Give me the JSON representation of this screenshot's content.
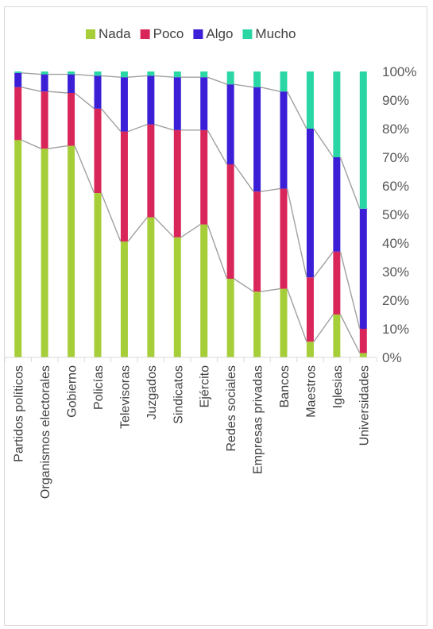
{
  "chart_data": {
    "type": "bar",
    "stacked": "percent",
    "series_lines": true,
    "categories": [
      "Partidos políticos",
      "Organismos electorales",
      "Gobierno",
      "Policías",
      "Televisoras",
      "Juzgados",
      "Sindicatos",
      "Ejército",
      "Redes sociales",
      "Empresas privadas",
      "Bancos",
      "Maestros",
      "Iglesias",
      "Universidades"
    ],
    "series": [
      {
        "name": "Nada",
        "color": "#a6ce39",
        "values": [
          76,
          73,
          74,
          57.5,
          40.5,
          49,
          42,
          46.5,
          27.5,
          23,
          24,
          5.5,
          15,
          1.5
        ]
      },
      {
        "name": "Poco",
        "color": "#d9265a",
        "values": [
          18.5,
          20,
          18.5,
          29.5,
          38.5,
          32.5,
          37.5,
          33,
          40,
          35,
          35,
          22.5,
          22,
          8.5
        ]
      },
      {
        "name": "Algo",
        "color": "#3a1fd6",
        "values": [
          5,
          6,
          6.5,
          11.5,
          19,
          17,
          18.5,
          18.5,
          28,
          36.5,
          34,
          52,
          33,
          42
        ]
      },
      {
        "name": "Mucho",
        "color": "#2ad6a4",
        "values": [
          0.5,
          1,
          1,
          1.5,
          2,
          1.5,
          2,
          2,
          4.5,
          5.5,
          7,
          20,
          30,
          48
        ]
      }
    ],
    "yticks": [
      "0%",
      "10%",
      "20%",
      "30%",
      "40%",
      "50%",
      "60%",
      "70%",
      "80%",
      "90%",
      "100%"
    ],
    "ylim": [
      0,
      100
    ],
    "y_axis_position": "right",
    "legend_position": "top",
    "grid": false,
    "title": "",
    "xlabel": "",
    "ylabel": "",
    "connector_line_color": "#a0a0a0"
  }
}
